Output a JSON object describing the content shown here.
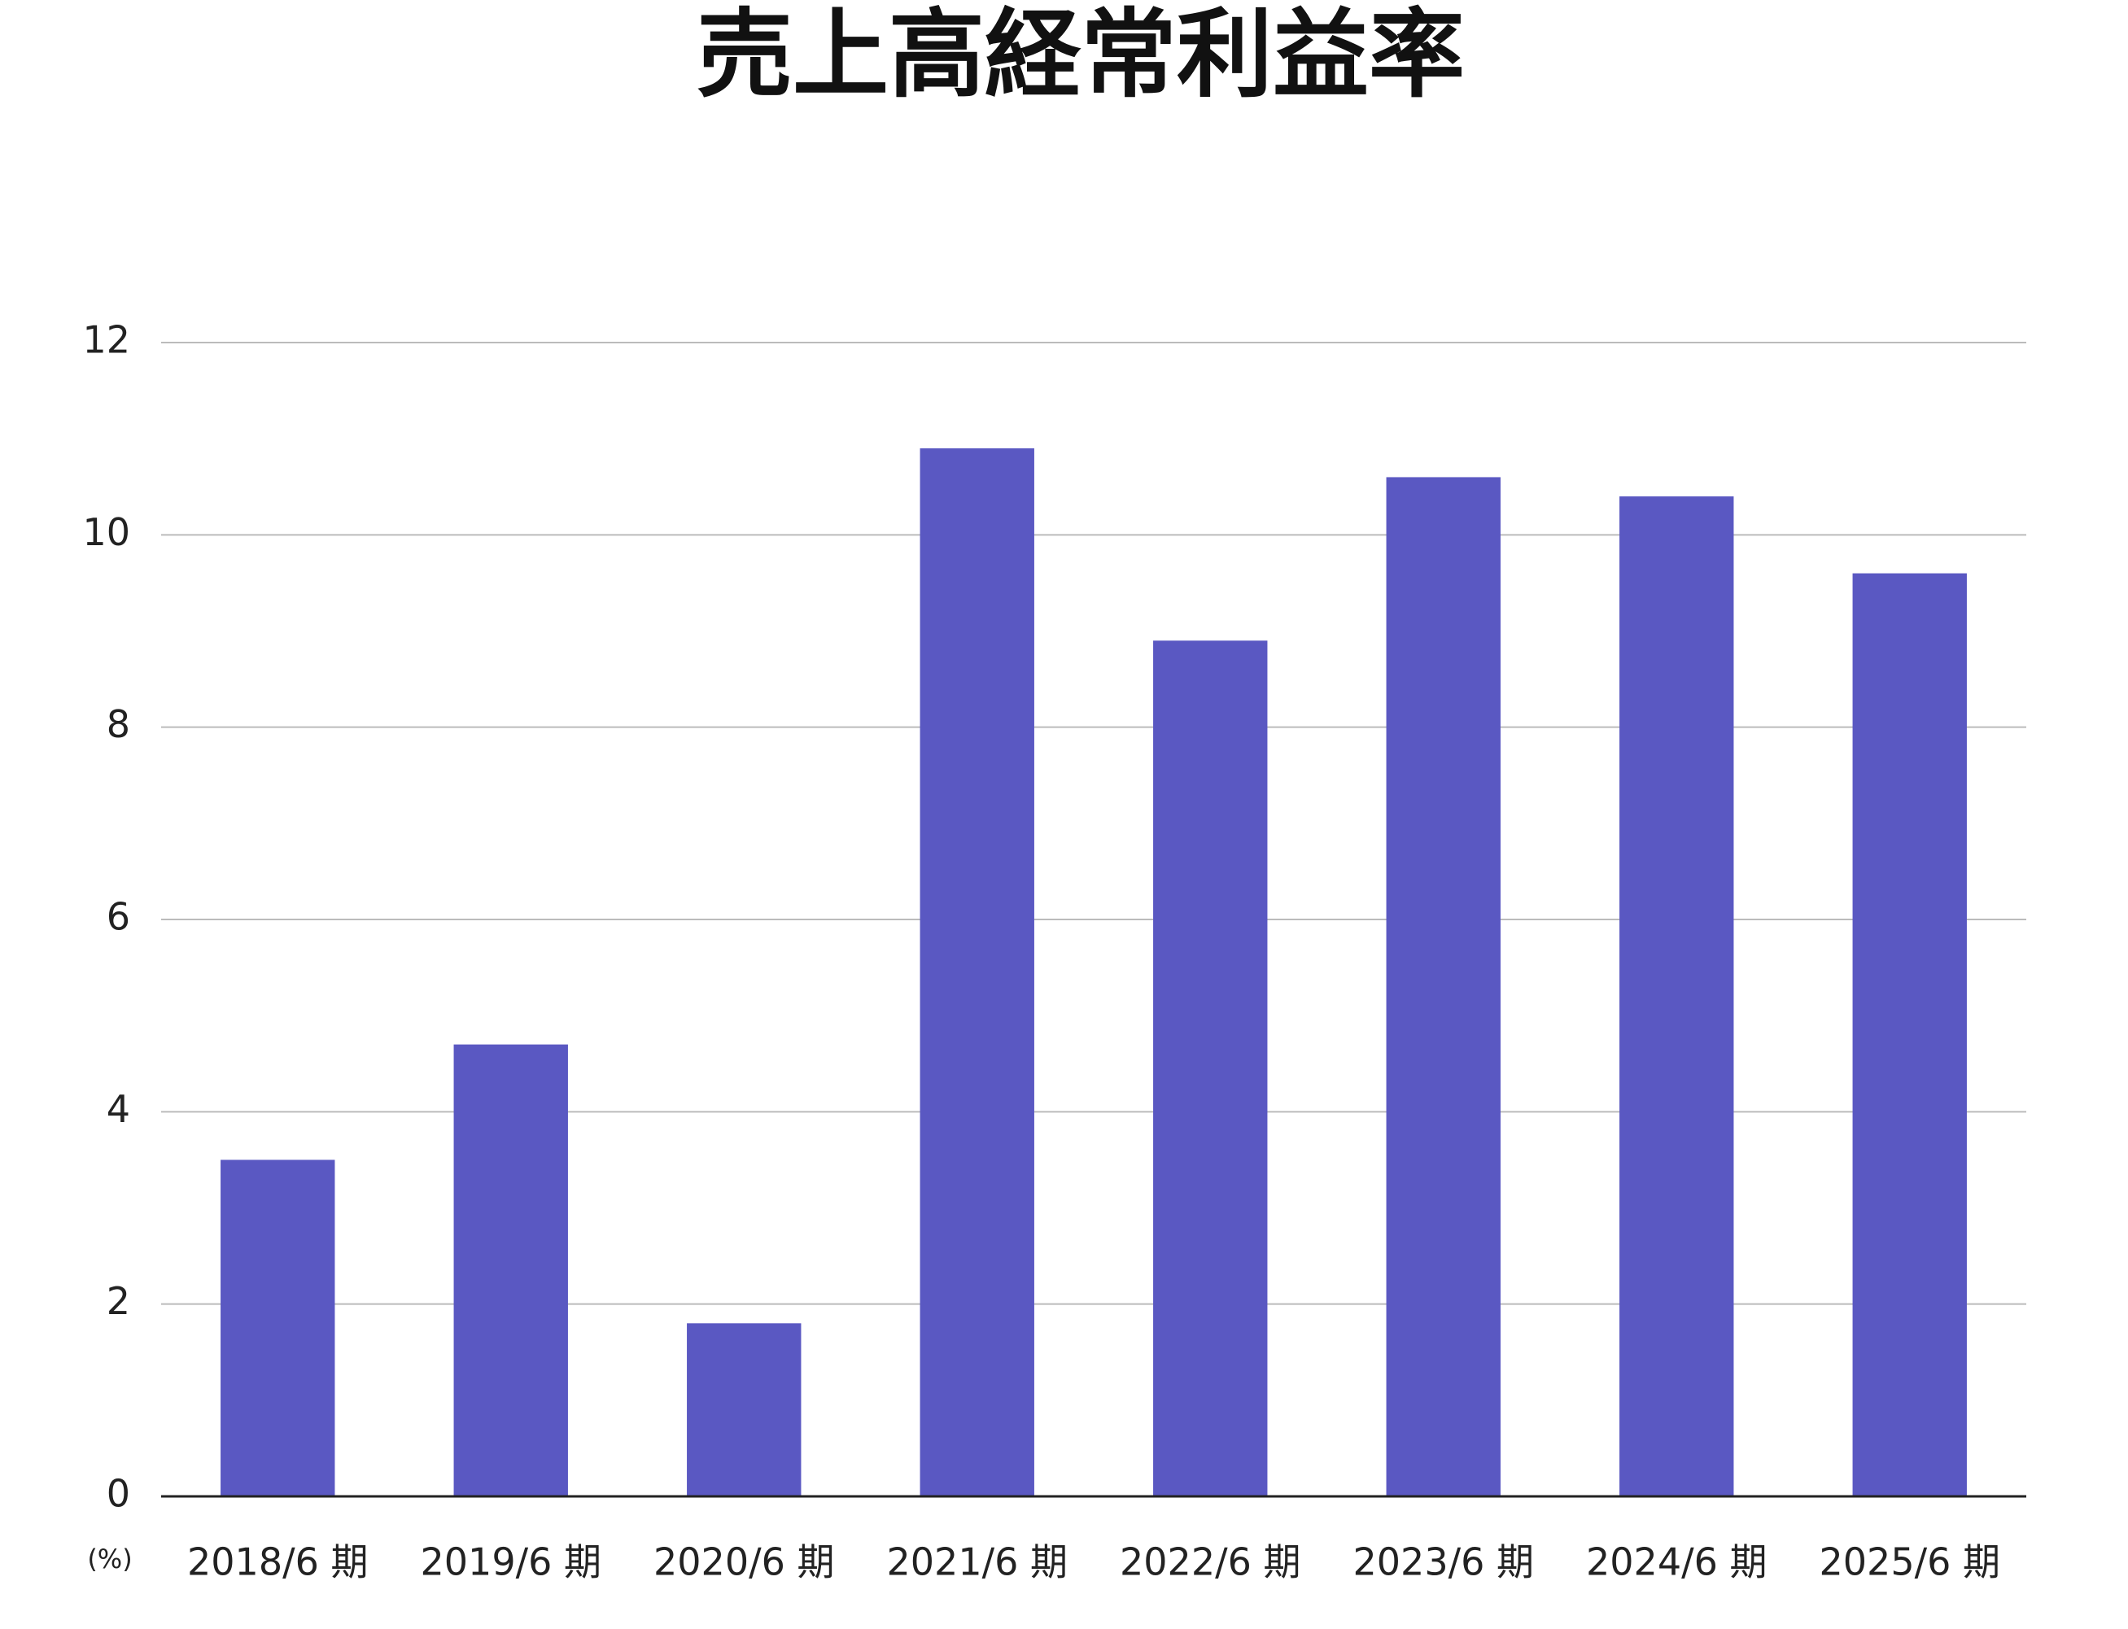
{
  "chart_data": {
    "type": "bar",
    "title": "売上高経常利益率",
    "y_label": "(%)",
    "categories": [
      "2018/6 期",
      "2019/6 期",
      "2020/6 期",
      "2021/6 期",
      "2022/6 期",
      "2023/6 期",
      "2024/6 期",
      "2025/6 期"
    ],
    "values": [
      3.5,
      4.7,
      1.8,
      10.9,
      8.9,
      10.6,
      10.4,
      9.6
    ],
    "color": "#5a58c2",
    "ylim": [
      0,
      12
    ],
    "yticks": [
      0,
      2,
      4,
      6,
      8,
      10,
      12
    ],
    "grid": true
  }
}
